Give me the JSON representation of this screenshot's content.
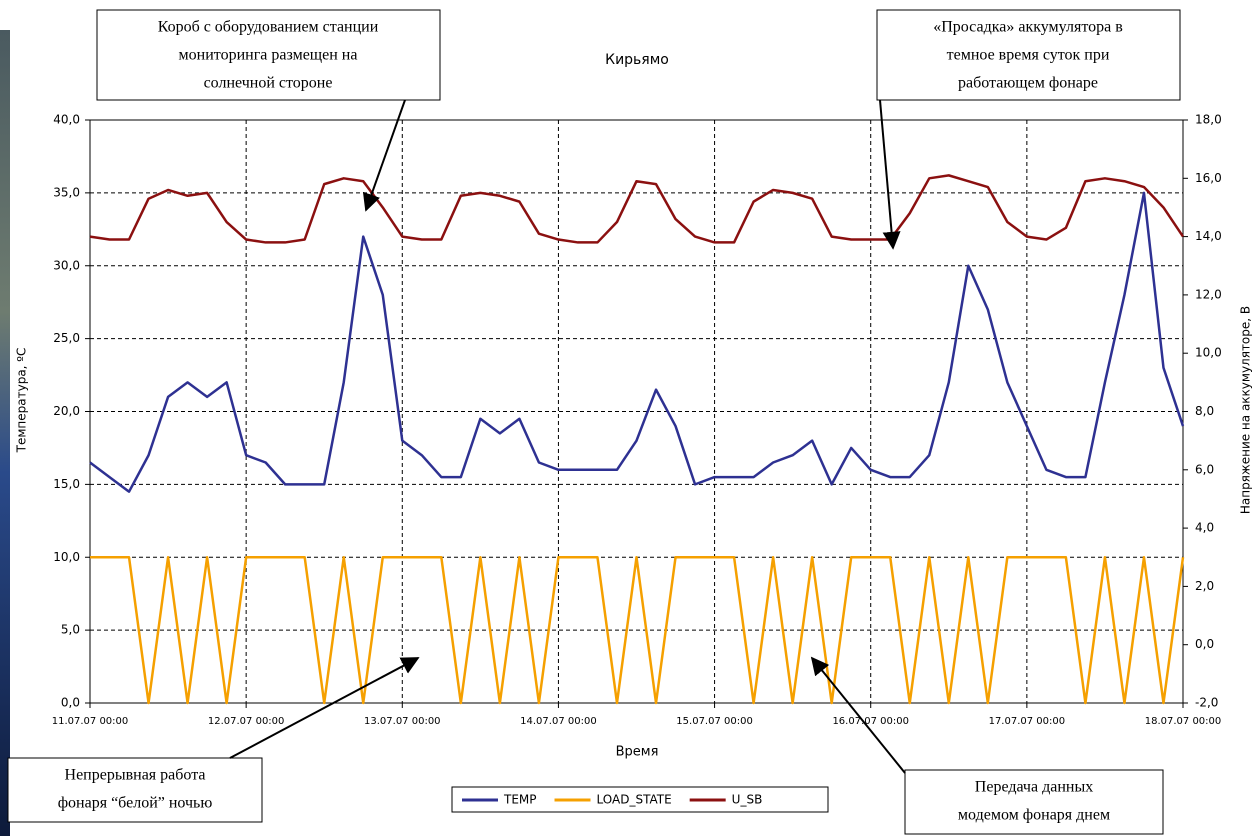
{
  "chart_data": {
    "type": "line",
    "title": "Кирьямо",
    "x_label": "Время",
    "y_label": "Температура, ºС",
    "y2_label": "Напряжение на аккумуляторе, В",
    "grid": true,
    "legend": "bottom",
    "x": [
      0,
      3,
      6,
      9,
      12,
      15,
      18,
      21,
      24,
      27,
      30,
      33,
      36,
      39,
      42,
      45,
      48,
      51,
      54,
      57,
      60,
      63,
      66,
      69,
      72,
      75,
      78,
      81,
      84,
      87,
      90,
      93,
      96,
      99,
      102,
      105,
      108,
      111,
      114,
      117,
      120,
      123,
      126,
      129,
      132,
      135,
      138,
      141,
      144,
      147,
      150,
      153,
      156,
      159,
      162,
      165,
      168
    ],
    "xlim": [
      0,
      168
    ],
    "xticks": [
      {
        "value": 0,
        "label": "11.07.07 00:00"
      },
      {
        "value": 24,
        "label": "12.07.07 00:00"
      },
      {
        "value": 48,
        "label": "13.07.07 00:00"
      },
      {
        "value": 72,
        "label": "14.07.07 00:00"
      },
      {
        "value": 96,
        "label": "15.07.07 00:00"
      },
      {
        "value": 120,
        "label": "16.07.07 00:00"
      },
      {
        "value": 144,
        "label": "17.07.07 00:00"
      },
      {
        "value": 168,
        "label": "18.07.07 00:00"
      }
    ],
    "ylim": [
      0,
      40
    ],
    "yticks": [
      {
        "value": 0,
        "label": "0,0"
      },
      {
        "value": 5,
        "label": "5,0"
      },
      {
        "value": 10,
        "label": "10,0"
      },
      {
        "value": 15,
        "label": "15,0"
      },
      {
        "value": 20,
        "label": "20,0"
      },
      {
        "value": 25,
        "label": "25,0"
      },
      {
        "value": 30,
        "label": "30,0"
      },
      {
        "value": 35,
        "label": "35,0"
      },
      {
        "value": 40,
        "label": "40,0"
      }
    ],
    "y2lim": [
      -2,
      18
    ],
    "y2ticks": [
      {
        "value": -2,
        "label": "-2,0"
      },
      {
        "value": 0,
        "label": "0,0"
      },
      {
        "value": 2,
        "label": "2,0"
      },
      {
        "value": 4,
        "label": "4,0"
      },
      {
        "value": 6,
        "label": "6,0"
      },
      {
        "value": 8,
        "label": "8,0"
      },
      {
        "value": 10,
        "label": "10,0"
      },
      {
        "value": 12,
        "label": "12,0"
      },
      {
        "value": 14,
        "label": "14,0"
      },
      {
        "value": 16,
        "label": "16,0"
      },
      {
        "value": 18,
        "label": "18,0"
      }
    ],
    "series": [
      {
        "name": "TEMP",
        "color": "#2e3192",
        "values": [
          16.5,
          15.5,
          14.5,
          17,
          21,
          22,
          21,
          22,
          17,
          16.5,
          15,
          15,
          15,
          22,
          32,
          28,
          18,
          17,
          15.5,
          15.5,
          19.5,
          18.5,
          19.5,
          16.5,
          16,
          16,
          16,
          16,
          18,
          21.5,
          19,
          15,
          15.5,
          15.5,
          15.5,
          16.5,
          17,
          18,
          15,
          17.5,
          16,
          15.5,
          15.5,
          17,
          22,
          30,
          27,
          22,
          19,
          16,
          15.5,
          15.5,
          22,
          28,
          35,
          23,
          19
        ]
      },
      {
        "name": "LOAD_STATE",
        "color": "#f5a000",
        "values": [
          10,
          10,
          10,
          0,
          10,
          0,
          10,
          0,
          10,
          10,
          10,
          10,
          0,
          10,
          0,
          10,
          10,
          10,
          10,
          0,
          10,
          0,
          10,
          0,
          10,
          10,
          10,
          0,
          10,
          0,
          10,
          10,
          10,
          10,
          0,
          10,
          0,
          10,
          0,
          10,
          10,
          10,
          0,
          10,
          0,
          10,
          0,
          10,
          10,
          10,
          10,
          0,
          10,
          0,
          10,
          0,
          10
        ]
      },
      {
        "name": "U_SB",
        "color": "#8b1010",
        "axis": "y2",
        "values": [
          14.0,
          13.9,
          13.9,
          15.3,
          15.6,
          15.4,
          15.5,
          14.5,
          13.9,
          13.8,
          13.8,
          13.9,
          15.8,
          16.0,
          15.9,
          15.0,
          14.0,
          13.9,
          13.9,
          15.4,
          15.5,
          15.4,
          15.2,
          14.1,
          13.9,
          13.8,
          13.8,
          14.5,
          15.9,
          15.8,
          14.6,
          14.0,
          13.8,
          13.8,
          15.2,
          15.6,
          15.5,
          15.3,
          14.0,
          13.9,
          13.9,
          13.9,
          14.8,
          16.0,
          16.1,
          15.9,
          15.7,
          14.5,
          14.0,
          13.9,
          14.3,
          15.9,
          16.0,
          15.9,
          15.7,
          15.0,
          14.0
        ]
      }
    ],
    "annotations": [
      {
        "lines": [
          "Короб с оборудованием станции",
          "мониторинга размещен на",
          "солнечной стороне"
        ]
      },
      {
        "lines": [
          "«Просадка» аккумулятора в",
          "темное время суток при",
          "работающем фонаре"
        ]
      },
      {
        "lines": [
          "Непрерывная работа",
          "фонаря “белой” ночью"
        ]
      },
      {
        "lines": [
          "Передача данных",
          "модемом фонаря днем"
        ]
      }
    ]
  }
}
